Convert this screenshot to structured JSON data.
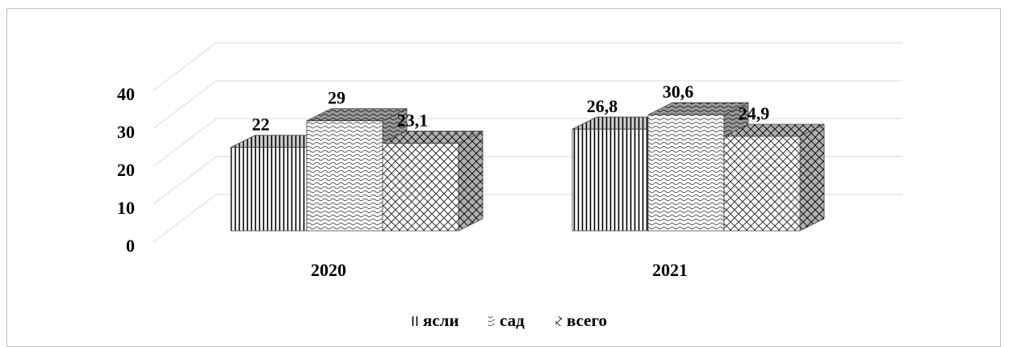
{
  "chart_data": {
    "type": "bar",
    "style": "3d-clustered-column",
    "categories": [
      "2020",
      "2021"
    ],
    "series": [
      {
        "name": "ясли",
        "values": [
          22,
          26.8
        ],
        "labels": [
          "22",
          "26,8"
        ],
        "pattern": "vertical-lines"
      },
      {
        "name": "сад",
        "values": [
          29,
          30.6
        ],
        "labels": [
          "29",
          "30,6"
        ],
        "pattern": "waves"
      },
      {
        "name": "всего",
        "values": [
          23.1,
          24.9
        ],
        "labels": [
          "23,1",
          "24,9"
        ],
        "pattern": "diagonal-lattice"
      }
    ],
    "yticks": [
      "0",
      "10",
      "20",
      "30",
      "40"
    ],
    "ylim": [
      0,
      40
    ],
    "grid": true,
    "legend_position": "bottom",
    "title": "",
    "xlabel": "",
    "ylabel": ""
  }
}
